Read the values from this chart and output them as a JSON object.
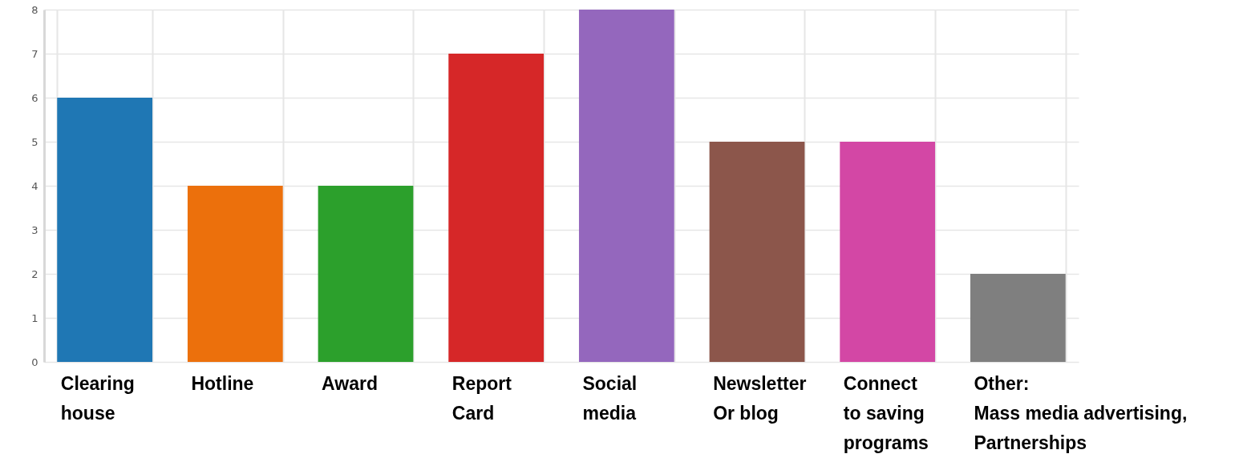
{
  "chart_data": {
    "type": "bar",
    "categories": [
      "Clearing\nhouse",
      "Hotline",
      "Award",
      "Report\nCard",
      "Social\nmedia",
      "Newsletter\nOr blog",
      "Connect\nto saving\nprograms",
      "Other:\nMass media advertising,\nPartnerships"
    ],
    "values": [
      6,
      4,
      4,
      7,
      8,
      5,
      5,
      2
    ],
    "colors": [
      "#1f77b4",
      "#ec700c",
      "#2ca02c",
      "#d62728",
      "#9467bd",
      "#8c564b",
      "#d347a5",
      "#7f7f7f"
    ],
    "ylim": [
      0,
      8
    ],
    "yticks": [
      0,
      1,
      2,
      3,
      4,
      5,
      6,
      7,
      8
    ],
    "grid": true
  }
}
